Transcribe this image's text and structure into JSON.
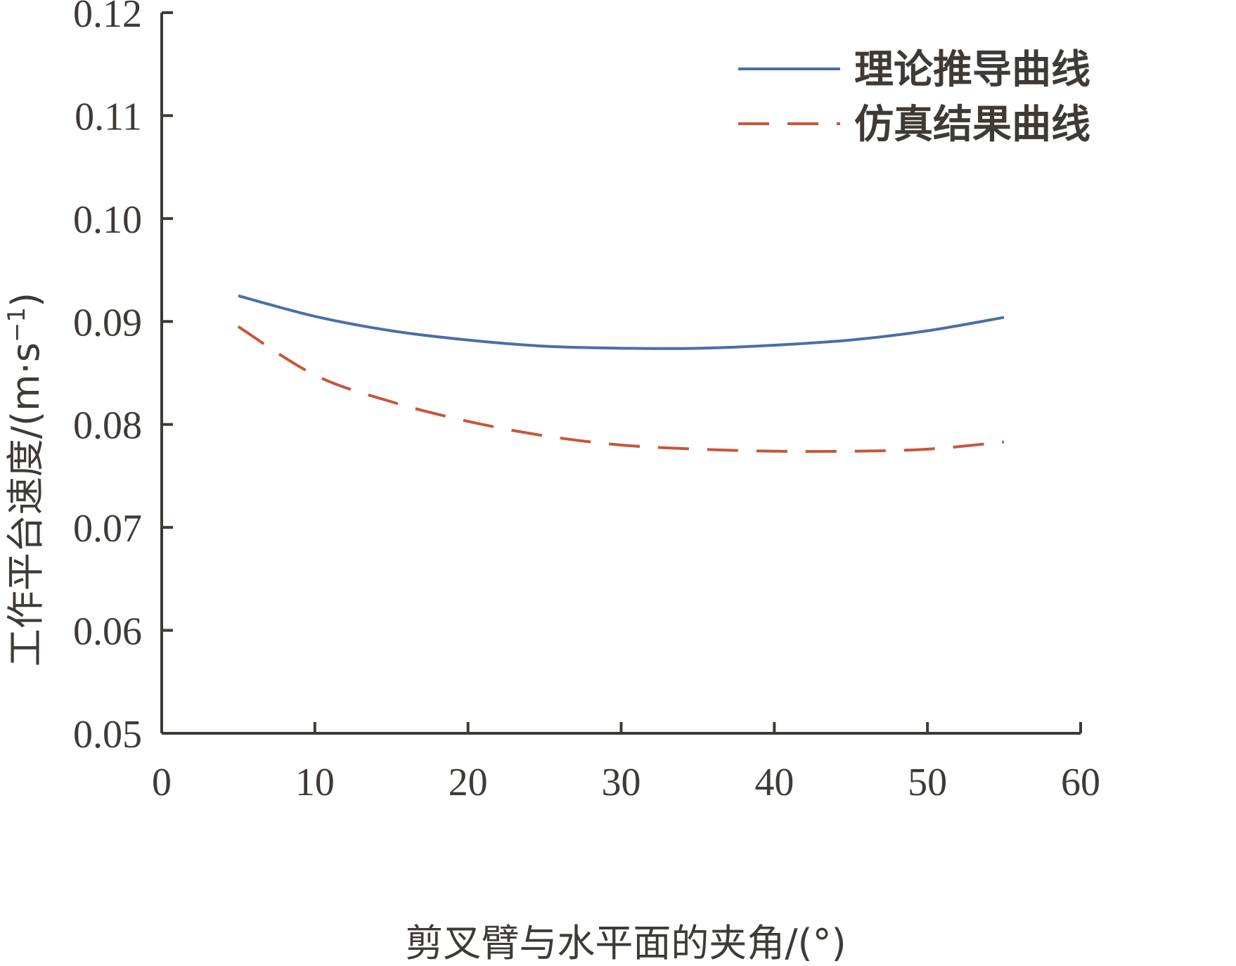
{
  "chart_data": {
    "type": "line",
    "xlabel": "剪叉臂与水平面的夹角/(°)",
    "ylabel_text": "工作平台速度/(m·s",
    "ylabel_sup": "−1",
    "ylabel_close": ")",
    "xlim": [
      0,
      60
    ],
    "ylim": [
      0.05,
      0.12
    ],
    "x_ticks": [
      0,
      10,
      20,
      30,
      40,
      50,
      60
    ],
    "x_tick_labels": [
      "0",
      "10",
      "20",
      "30",
      "40",
      "50",
      "60"
    ],
    "y_ticks": [
      0.05,
      0.06,
      0.07,
      0.08,
      0.09,
      0.1,
      0.11,
      0.12
    ],
    "y_tick_labels": [
      "0.05",
      "0.06",
      "0.07",
      "0.08",
      "0.09",
      "0.10",
      "0.11",
      "0.12"
    ],
    "grid": false,
    "legend_position": "top-right",
    "x": [
      5,
      10,
      15,
      20,
      25,
      30,
      35,
      40,
      45,
      50,
      55
    ],
    "series": [
      {
        "name": "理论推导曲线",
        "color": "#4a6ea8",
        "dash": "solid",
        "values": [
          0.0925,
          0.0905,
          0.0891,
          0.0882,
          0.0876,
          0.0874,
          0.0874,
          0.0877,
          0.0882,
          0.0891,
          0.0904
        ]
      },
      {
        "name": "仿真结果曲线",
        "color": "#c8553a",
        "dash": "dashed",
        "values": [
          0.0895,
          0.0848,
          0.0822,
          0.0803,
          0.0789,
          0.078,
          0.0776,
          0.0774,
          0.0774,
          0.0776,
          0.0783
        ]
      }
    ]
  }
}
